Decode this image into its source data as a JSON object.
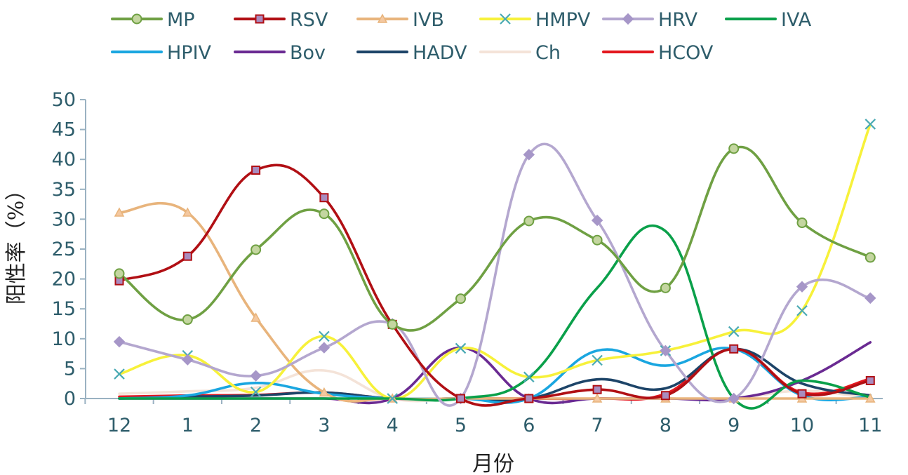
{
  "chart_data": {
    "type": "line",
    "xlabel": "月份",
    "ylabel": "阳性率（%）",
    "categories": [
      "12",
      "1",
      "2",
      "3",
      "4",
      "5",
      "6",
      "7",
      "8",
      "9",
      "10",
      "11"
    ],
    "ylim": [
      0,
      50
    ],
    "yticks": [
      "0",
      "5",
      "10",
      "15",
      "20",
      "25",
      "30",
      "35",
      "40",
      "45",
      "50"
    ],
    "legend_position": "top",
    "grid": false,
    "smooth": true,
    "axis_color": "#9ab2c2",
    "series": [
      {
        "name": "MP",
        "color": "#6fa043",
        "marker": "circle",
        "marker_fill": "#c4d6a0",
        "values": [
          20.9,
          13.2,
          24.9,
          30.9,
          12.4,
          16.7,
          29.7,
          26.5,
          18.5,
          41.8,
          29.4,
          23.6
        ]
      },
      {
        "name": "RSV",
        "color": "#b10f14",
        "marker": "square",
        "marker_fill": "#a98cbf",
        "values": [
          19.7,
          23.8,
          38.2,
          33.6,
          12.4,
          0,
          0,
          1.5,
          0.5,
          8.3,
          0.8,
          3.0
        ]
      },
      {
        "name": "IVB",
        "color": "#e8b47c",
        "marker": "triangle",
        "marker_fill": "#f4c8a0",
        "values": [
          31.1,
          31.1,
          13.5,
          1.0,
          0,
          0,
          0,
          0,
          0,
          0,
          0,
          0
        ]
      },
      {
        "name": "HMPV",
        "color": "#f7f13a",
        "marker": "x",
        "marker_fill": "#4aaab4",
        "values": [
          4.1,
          7.2,
          1.1,
          10.4,
          0,
          8.4,
          3.6,
          6.4,
          8.0,
          11.2,
          14.7,
          45.9
        ]
      },
      {
        "name": "HRV",
        "color": "#b4a7cf",
        "marker": "diamond",
        "marker_fill": "#a696c8",
        "values": [
          9.5,
          6.5,
          3.8,
          8.5,
          12.5,
          0,
          40.8,
          29.8,
          8.0,
          0,
          18.7,
          16.8
        ]
      },
      {
        "name": "IVA",
        "color": "#0aa04a",
        "marker": "none",
        "values": [
          0,
          0,
          0,
          0,
          0,
          0,
          3.5,
          18.5,
          28.0,
          0,
          3.0,
          0.2
        ]
      },
      {
        "name": "HPIV",
        "color": "#1aa6e0",
        "marker": "none",
        "values": [
          0,
          0.5,
          2.6,
          0.8,
          0,
          0,
          0,
          8.0,
          5.5,
          8.3,
          0.5,
          0.3
        ]
      },
      {
        "name": "Bov",
        "color": "#6a2a92",
        "marker": "none",
        "values": [
          0,
          0,
          0,
          0,
          0,
          8.5,
          0,
          0,
          0,
          0,
          3.0,
          9.4
        ]
      },
      {
        "name": "HADV",
        "color": "#1d4468",
        "marker": "none",
        "values": [
          0,
          0.3,
          0.5,
          1.0,
          0,
          0,
          0,
          3.2,
          1.7,
          8.3,
          2.5,
          0.5
        ]
      },
      {
        "name": "Ch",
        "color": "#f4e3d8",
        "marker": "none",
        "values": [
          0.8,
          1.2,
          1.8,
          4.7,
          0,
          0,
          0,
          0,
          0,
          0,
          1.3,
          0
        ]
      },
      {
        "name": "HCOV",
        "color": "#e3171e",
        "marker": "none",
        "values": [
          0.3,
          0.5,
          0.6,
          1.0,
          0,
          0,
          0,
          0,
          0.8,
          8.3,
          1.0,
          3.3
        ]
      }
    ]
  }
}
